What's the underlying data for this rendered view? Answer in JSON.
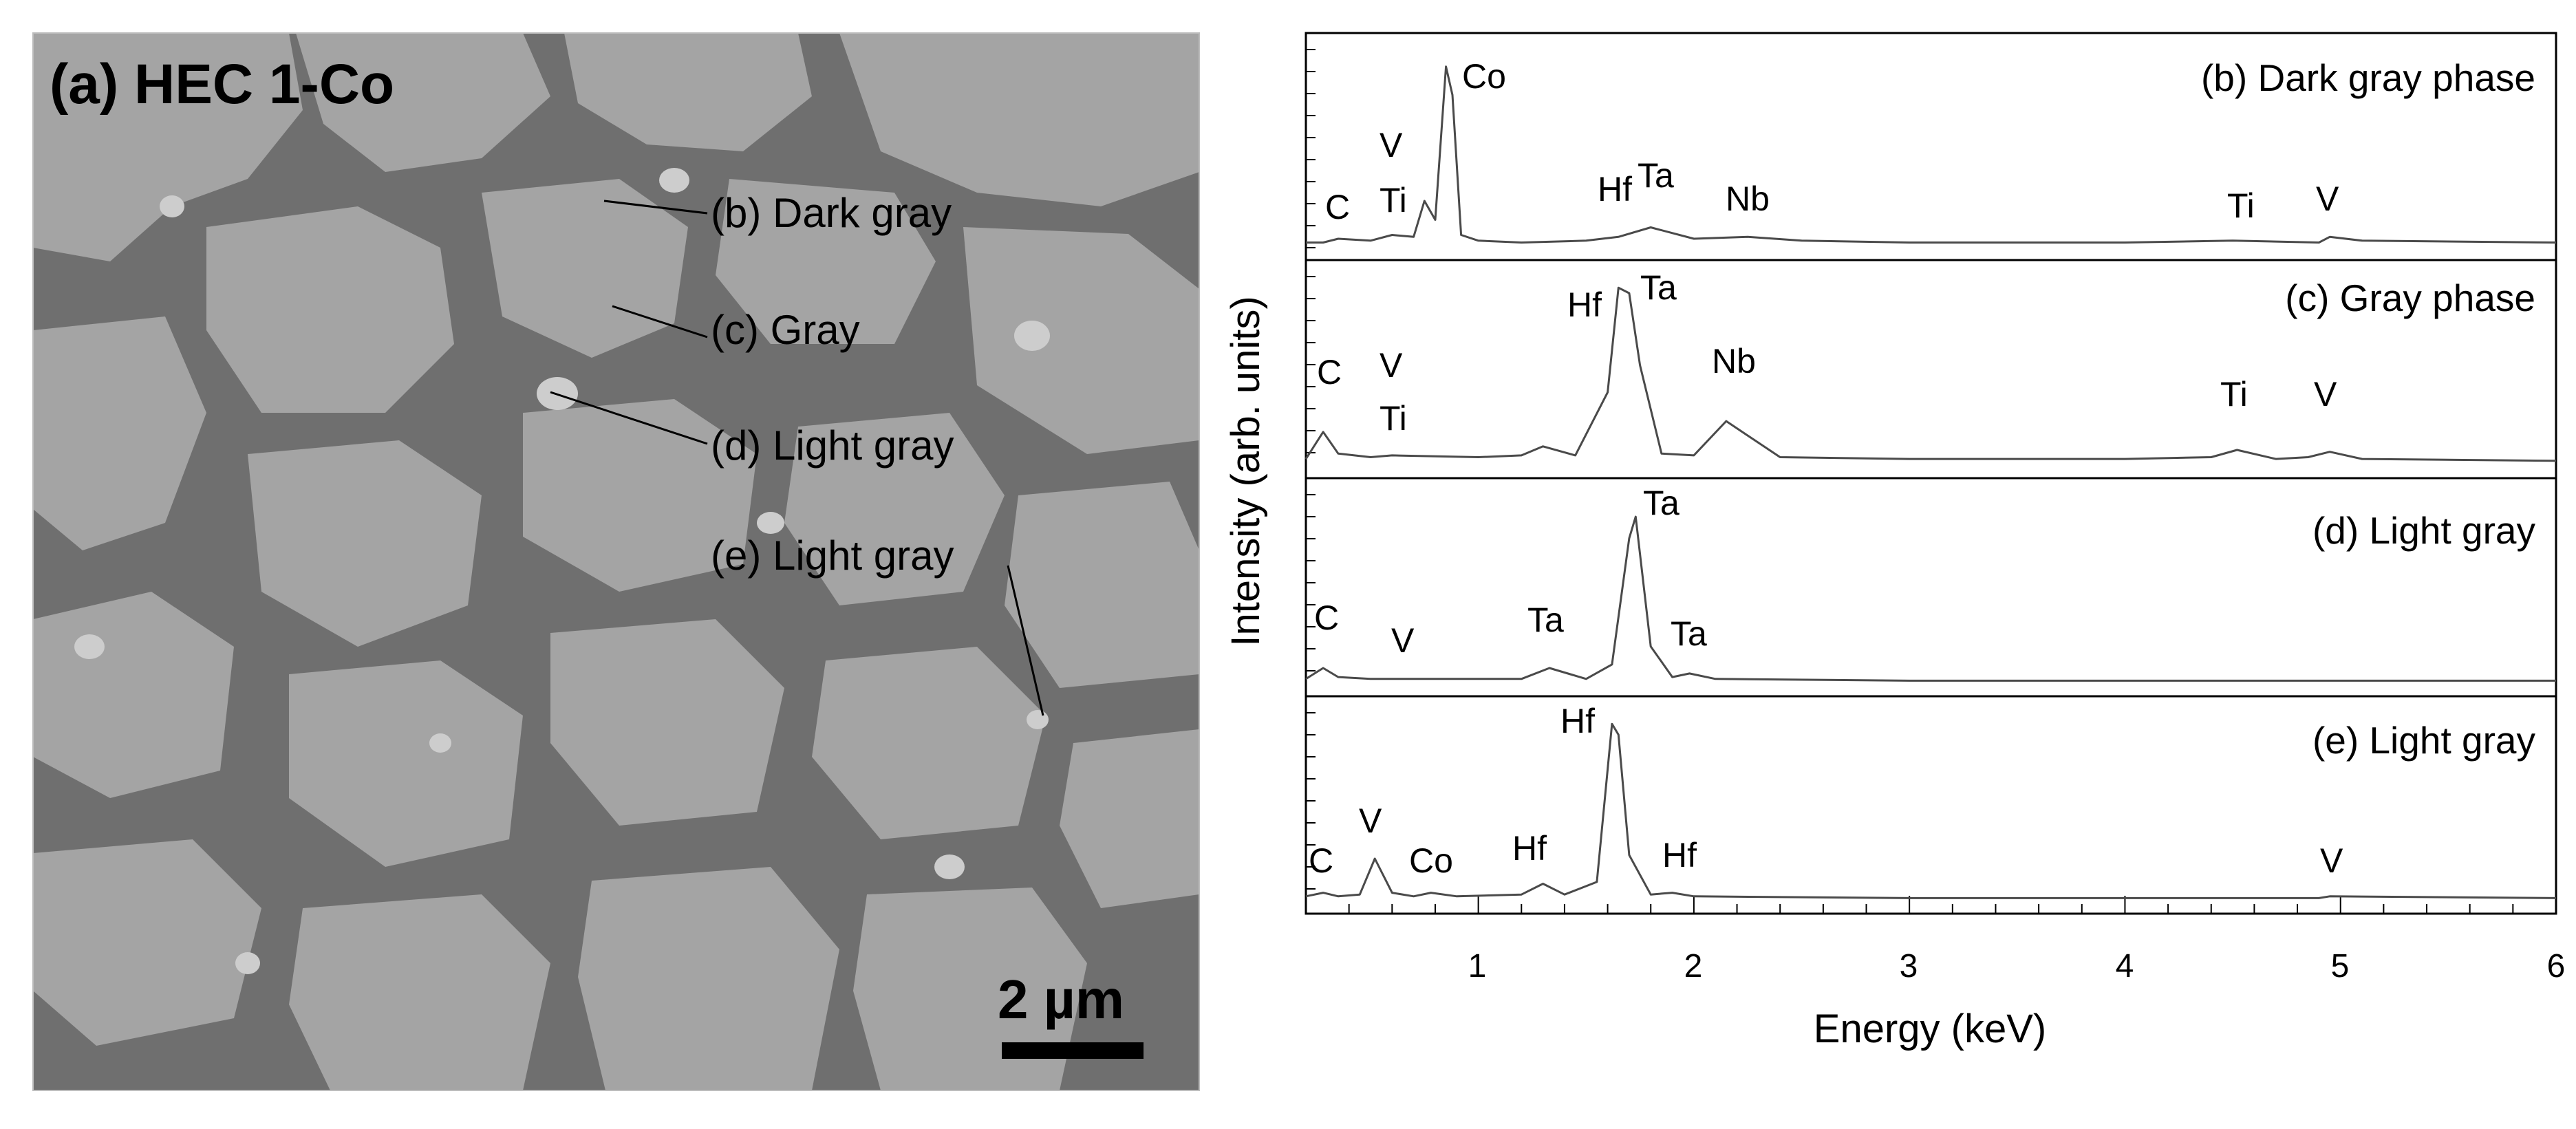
{
  "sem": {
    "title": "(a) HEC 1-Co",
    "scale_bar": "2 µm",
    "labels": [
      "(b) Dark gray",
      "(c) Gray",
      "(d) Light gray",
      "(e) Light gray"
    ]
  },
  "colors": {
    "sem_dark_gray": "#6f6f6f",
    "sem_gray": "#a4a4a4",
    "sem_light_gray": "#c9c9c9",
    "spectrum_line": "#4a4a4a"
  },
  "chart_data": {
    "type": "line",
    "xlabel": "Energy (keV)",
    "ylabel": "Intensity (arb. units)",
    "xlim": [
      0.2,
      6
    ],
    "x_ticks": [
      1,
      2,
      3,
      4,
      5,
      6
    ],
    "grid": false,
    "panels": [
      {
        "name": "(b) Dark gray phase",
        "x": [
          0.2,
          0.28,
          0.35,
          0.5,
          0.6,
          0.7,
          0.75,
          0.8,
          0.85,
          0.88,
          0.92,
          1.0,
          1.2,
          1.5,
          1.65,
          1.8,
          2.0,
          2.25,
          2.5,
          3.0,
          4.0,
          4.5,
          4.9,
          4.95,
          5.1,
          6.0
        ],
        "y": [
          2,
          2,
          4,
          3,
          6,
          5,
          24,
          14,
          95,
          80,
          6,
          3,
          2,
          3,
          5,
          10,
          4,
          5,
          3,
          2,
          2,
          3,
          2,
          5,
          3,
          2
        ],
        "peaks": [
          "C",
          "V",
          "Ti",
          "Co",
          "Hf",
          "Ta",
          "Nb",
          "Ti",
          "V"
        ]
      },
      {
        "name": "(c) Gray phase",
        "x": [
          0.2,
          0.28,
          0.35,
          0.5,
          0.6,
          1.0,
          1.2,
          1.3,
          1.45,
          1.6,
          1.65,
          1.7,
          1.75,
          1.85,
          2.0,
          2.15,
          2.25,
          2.4,
          3.0,
          4.0,
          4.4,
          4.52,
          4.7,
          4.85,
          4.95,
          5.1,
          6.0
        ],
        "y": [
          3,
          18,
          6,
          4,
          5,
          4,
          5,
          10,
          5,
          40,
          98,
          95,
          55,
          6,
          5,
          24,
          16,
          4,
          3,
          3,
          4,
          8,
          3,
          4,
          7,
          3,
          2
        ],
        "peaks": [
          "C",
          "V",
          "Ti",
          "Hf",
          "Ta",
          "Nb",
          "Ti",
          "V"
        ]
      },
      {
        "name": "(d) Light gray",
        "x": [
          0.2,
          0.28,
          0.35,
          0.5,
          0.6,
          1.2,
          1.33,
          1.5,
          1.62,
          1.7,
          1.73,
          1.8,
          1.9,
          1.98,
          2.1,
          3.0,
          4.0,
          5.0,
          6.0
        ],
        "y": [
          2,
          8,
          3,
          2,
          2,
          2,
          8,
          2,
          10,
          80,
          92,
          20,
          3,
          5,
          2,
          1,
          1,
          1,
          1
        ],
        "peaks": [
          "C",
          "V",
          "Ta",
          "Ta",
          "Ta"
        ]
      },
      {
        "name": "(e) Light gray",
        "x": [
          0.2,
          0.28,
          0.35,
          0.45,
          0.52,
          0.6,
          0.7,
          0.78,
          0.9,
          1.2,
          1.3,
          1.4,
          1.55,
          1.62,
          1.65,
          1.7,
          1.8,
          1.9,
          2.0,
          3.0,
          4.0,
          4.9,
          4.95,
          6.0
        ],
        "y": [
          2,
          4,
          2,
          3,
          23,
          4,
          2,
          4,
          2,
          3,
          9,
          3,
          10,
          98,
          92,
          25,
          3,
          4,
          2,
          1,
          1,
          1,
          2,
          1
        ],
        "peaks": [
          "C",
          "V",
          "Co",
          "Hf",
          "Hf",
          "Hf",
          "V"
        ]
      }
    ]
  }
}
